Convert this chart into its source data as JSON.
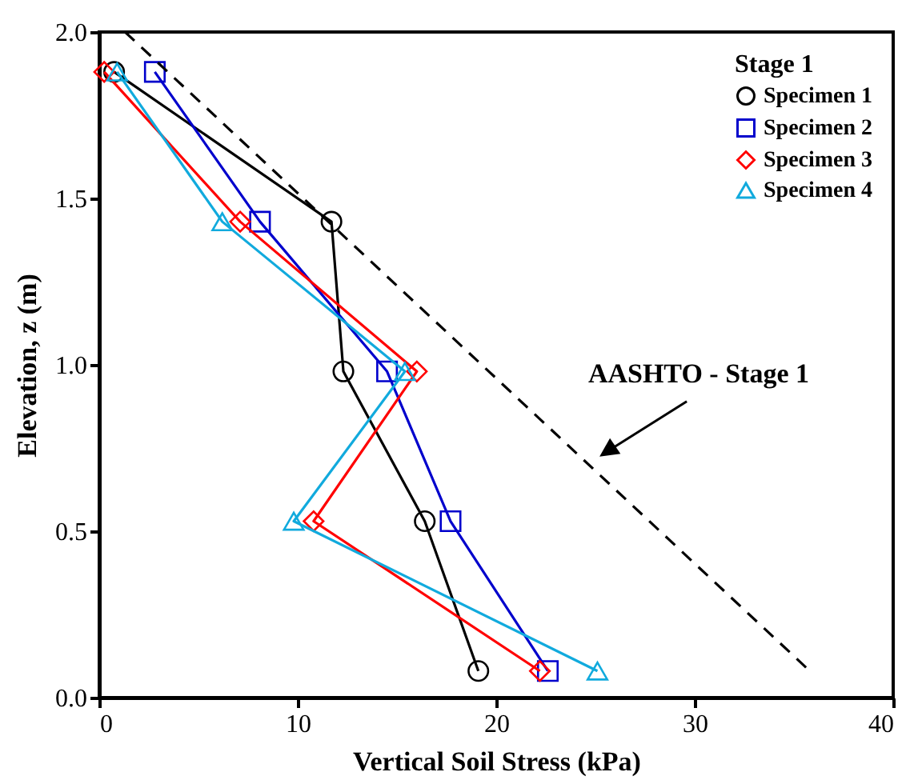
{
  "chart_data": {
    "type": "line",
    "xlabel": "Vertical Soil Stress (kPa)",
    "ylabel": "Elevation, z (m)",
    "legend_title": "Stage 1",
    "legend": "top right",
    "grid": false,
    "xlim": [
      0,
      40
    ],
    "xticks": [
      0,
      10,
      20,
      30,
      40
    ],
    "ylim": [
      0,
      2.0
    ],
    "yticks": [
      {
        "value": 0,
        "label": "0.0"
      },
      0.5,
      {
        "value": 1,
        "label": "1.0"
      },
      1.5,
      {
        "value": 2,
        "label": "2.0"
      }
    ],
    "series": [
      {
        "name": "Specimen 1",
        "color": "#000000",
        "marker": "circle",
        "x": [
          0.75,
          11.7,
          12.3,
          16.4,
          19.1
        ],
        "values": [
          1.88,
          1.43,
          0.98,
          0.53,
          0.08
        ]
      },
      {
        "name": "Specimen 2",
        "color": "#0000cc",
        "marker": "square",
        "x": [
          2.8,
          8.1,
          14.5,
          17.7,
          22.6
        ],
        "values": [
          1.88,
          1.43,
          0.98,
          0.53,
          0.08
        ]
      },
      {
        "name": "Specimen 3",
        "color": "#ff0000",
        "marker": "diamond",
        "x": [
          0.25,
          7.1,
          16.0,
          10.8,
          22.2
        ],
        "values": [
          1.88,
          1.43,
          0.98,
          0.53,
          0.08
        ]
      },
      {
        "name": "Specimen 4",
        "color": "#11aadd",
        "marker": "triangle",
        "x": [
          0.9,
          6.2,
          15.4,
          9.8,
          25.1
        ],
        "values": [
          1.88,
          1.43,
          0.98,
          0.53,
          0.08
        ]
      },
      {
        "color": "#000000",
        "marker": "none",
        "line_style": "dashed",
        "x": [
          1.3,
          35.8
        ],
        "values": [
          2.0,
          0.08
        ]
      }
    ],
    "annotations": [
      "AASHTO - Stage 1"
    ]
  }
}
